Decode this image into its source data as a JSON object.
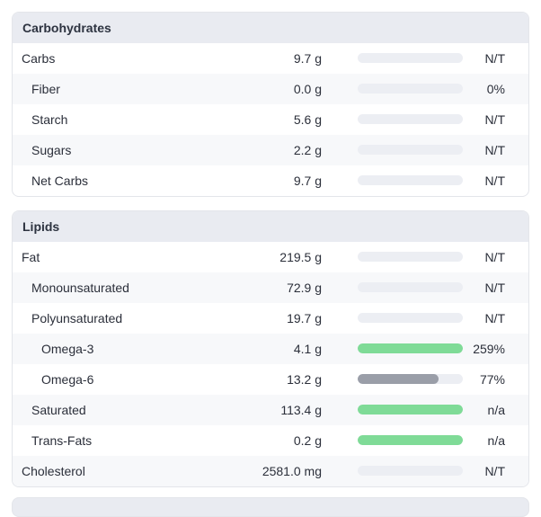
{
  "sections": [
    {
      "title": "Carbohydrates",
      "rows": [
        {
          "name": "Carbs",
          "indent": 0,
          "amount": "9.7 g",
          "bar": 0,
          "bar_color": "",
          "pct": "N/T"
        },
        {
          "name": "Fiber",
          "indent": 1,
          "amount": "0.0 g",
          "bar": 0,
          "bar_color": "",
          "pct": "0%"
        },
        {
          "name": "Starch",
          "indent": 1,
          "amount": "5.6 g",
          "bar": 0,
          "bar_color": "",
          "pct": "N/T"
        },
        {
          "name": "Sugars",
          "indent": 1,
          "amount": "2.2 g",
          "bar": 0,
          "bar_color": "",
          "pct": "N/T"
        },
        {
          "name": "Net Carbs",
          "indent": 1,
          "amount": "9.7 g",
          "bar": 0,
          "bar_color": "",
          "pct": "N/T"
        }
      ]
    },
    {
      "title": "Lipids",
      "rows": [
        {
          "name": "Fat",
          "indent": 0,
          "amount": "219.5 g",
          "bar": 0,
          "bar_color": "",
          "pct": "N/T"
        },
        {
          "name": "Monounsaturated",
          "indent": 1,
          "amount": "72.9 g",
          "bar": 0,
          "bar_color": "",
          "pct": "N/T"
        },
        {
          "name": "Polyunsaturated",
          "indent": 1,
          "amount": "19.7 g",
          "bar": 0,
          "bar_color": "",
          "pct": "N/T"
        },
        {
          "name": "Omega-3",
          "indent": 2,
          "amount": "4.1 g",
          "bar": 1.0,
          "bar_color": "#7fdb97",
          "pct": "259%"
        },
        {
          "name": "Omega-6",
          "indent": 2,
          "amount": "13.2 g",
          "bar": 0.77,
          "bar_color": "#9a9ea8",
          "pct": "77%"
        },
        {
          "name": "Saturated",
          "indent": 1,
          "amount": "113.4 g",
          "bar": 1.0,
          "bar_color": "#7fdb97",
          "pct": "n/a"
        },
        {
          "name": "Trans-Fats",
          "indent": 1,
          "amount": "0.2 g",
          "bar": 1.0,
          "bar_color": "#7fdb97",
          "pct": "n/a"
        },
        {
          "name": "Cholesterol",
          "indent": 0,
          "amount": "2581.0 mg",
          "bar": 0,
          "bar_color": "",
          "pct": "N/T"
        }
      ]
    }
  ]
}
